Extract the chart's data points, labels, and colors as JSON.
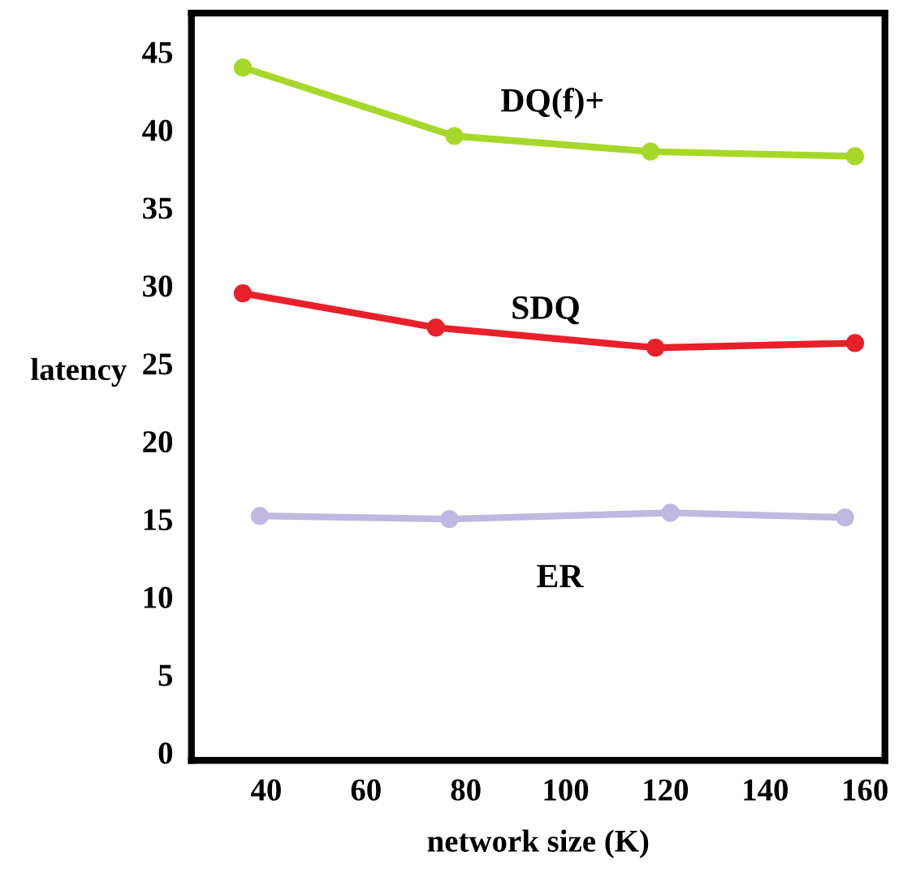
{
  "chart_data": {
    "type": "line",
    "xlabel": "network size (K)",
    "ylabel": "latency",
    "xlim": [
      25,
      164
    ],
    "xticks": [
      40,
      60,
      80,
      100,
      120,
      140,
      160
    ],
    "ylim": [
      -0.5,
      47.5
    ],
    "yticks": [
      0,
      5,
      10,
      15,
      20,
      25,
      30,
      35,
      40,
      45
    ],
    "grid": false,
    "legend": false,
    "marker": "circle",
    "line_style": "solid",
    "series": [
      {
        "name": "DQ(f)+",
        "color": "#a6d82a",
        "x": [
          35.3,
          77.7,
          117,
          158
        ],
        "values": [
          44.0,
          39.6,
          38.6,
          38.3
        ]
      },
      {
        "name": "SDQ",
        "color": "#e8202a",
        "x": [
          35.3,
          74,
          118,
          158
        ],
        "values": [
          29.5,
          27.3,
          26.0,
          26.3
        ]
      },
      {
        "name": "ER",
        "color": "#c0b8e0",
        "x": [
          38.7,
          76.7,
          121,
          156
        ],
        "values": [
          15.2,
          15.0,
          15.4,
          15.1
        ]
      }
    ]
  }
}
